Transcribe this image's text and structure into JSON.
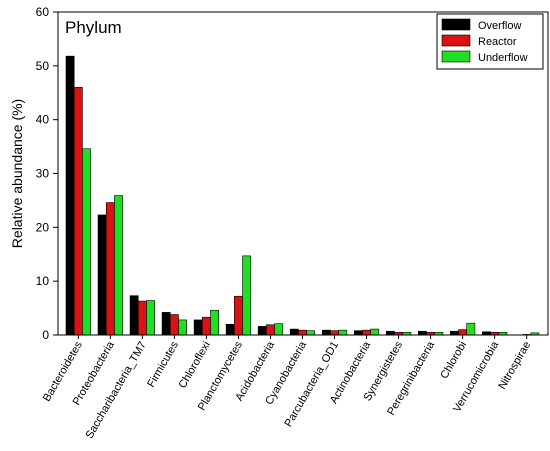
{
  "chart_data": {
    "type": "bar",
    "title": "Phylum",
    "xlabel": "",
    "ylabel": "Relative abundance (%)",
    "ylim": [
      0,
      60
    ],
    "yticks": [
      0,
      10,
      20,
      30,
      40,
      50,
      60
    ],
    "legend_position": "top-right",
    "grid": false,
    "categories": [
      "Bacteroidetes",
      "Proteobacteria",
      "Saccharibacteria_TM7",
      "Firmicutes",
      "Chloroflexi",
      "Planctomycetes",
      "Acidobacteria",
      "Cyanobacteria",
      "Parcubacteria_OD1",
      "Actinobacteria",
      "Synergistetes",
      "Peregrinibacteria",
      "Chlorobi",
      "Verrucomicrobia",
      "Nitrospirae"
    ],
    "series": [
      {
        "name": "Overflow",
        "color": "#000000",
        "values": [
          51.8,
          22.3,
          7.3,
          4.2,
          2.8,
          2.0,
          1.6,
          1.1,
          0.9,
          0.8,
          0.7,
          0.7,
          0.7,
          0.6,
          0.0
        ]
      },
      {
        "name": "Reactor",
        "color": "#dd1111",
        "values": [
          46.0,
          24.6,
          6.3,
          3.8,
          3.3,
          7.2,
          1.9,
          0.9,
          0.8,
          0.9,
          0.5,
          0.5,
          1.0,
          0.5,
          0.1
        ]
      },
      {
        "name": "Underflow",
        "color": "#22dd22",
        "values": [
          34.6,
          25.9,
          6.4,
          2.8,
          4.6,
          14.7,
          2.1,
          0.8,
          0.9,
          1.1,
          0.5,
          0.5,
          2.2,
          0.5,
          0.4
        ]
      }
    ]
  }
}
